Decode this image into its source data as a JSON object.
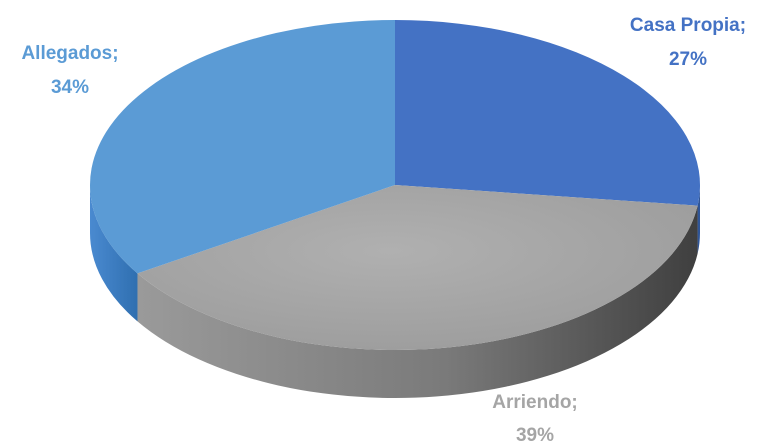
{
  "chart_data": {
    "type": "pie",
    "style": "3d",
    "categories": [
      "Casa Propia",
      "Arriendo",
      "Allegados"
    ],
    "values": [
      27,
      39,
      34
    ],
    "value_unit": "%",
    "labels": [
      {
        "name": "Casa Propia;",
        "value": "27%"
      },
      {
        "name": "Arriendo;",
        "value": "39%"
      },
      {
        "name": "Allegados;",
        "value": "34%"
      }
    ],
    "colors": {
      "top": [
        "#4472c4",
        "#a5a5a5",
        "#5b9bd5"
      ],
      "side": [
        "#2f5597",
        "#555555",
        "#3a7fc0"
      ],
      "label": [
        "#4472c4",
        "#a5a5a5",
        "#5b9bd5"
      ]
    },
    "legend": "none"
  }
}
